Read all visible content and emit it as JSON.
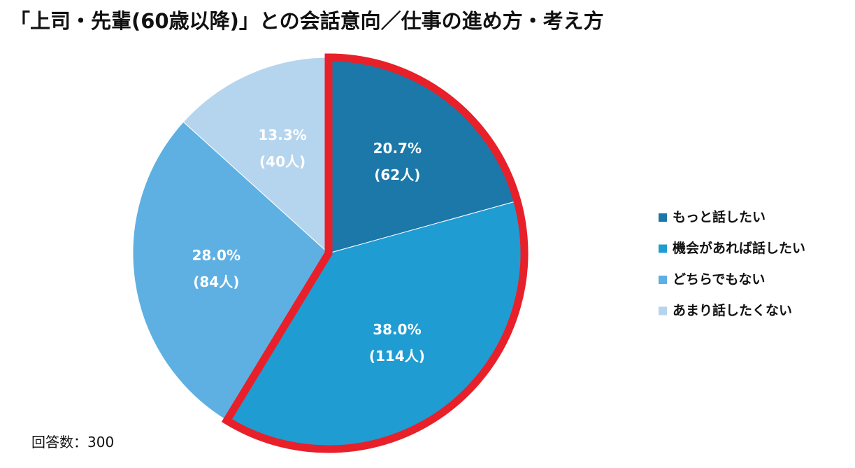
{
  "chart_data": {
    "type": "pie",
    "title": "「上司・先輩(60歳以降)」との会話意向／仕事の進め方・考え方",
    "categories": [
      "もっと話したい",
      "機会があれば話したい",
      "どちらでもない",
      "あまり話したくない"
    ],
    "values": [
      20.7,
      38.0,
      28.0,
      13.3
    ],
    "value_labels": [
      "20.7%",
      "38.0%",
      "28.0%",
      "13.3%"
    ],
    "counts": [
      62,
      114,
      84,
      40
    ],
    "count_labels": [
      "(62人)",
      "(114人)",
      "(84人)",
      "(40人)"
    ],
    "colors": [
      "#1b78a9",
      "#1f9cd2",
      "#5eb0e2",
      "#b5d5ee"
    ],
    "highlight": [
      0,
      1
    ],
    "highlight_color": "#e8202a",
    "total_label": "回答数：",
    "total": 300
  }
}
